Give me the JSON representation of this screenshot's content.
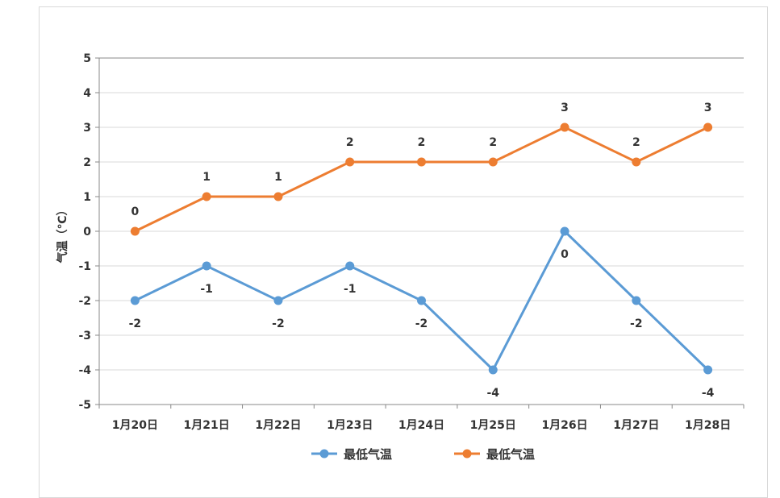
{
  "chart_data": {
    "type": "line",
    "title": "",
    "xlabel": "",
    "ylabel": "气温（℃）",
    "ylim": [
      -5,
      5
    ],
    "yticks": [
      "-5",
      "-4",
      "-3",
      "-2",
      "-1",
      "0",
      "1",
      "2",
      "3",
      "4",
      "5"
    ],
    "grid": true,
    "legend_position": "bottom",
    "categories": [
      "1月20日",
      "1月21日",
      "1月22日",
      "1月23日",
      "1月24日",
      "1月25日",
      "1月26日",
      "1月27日",
      "1月28日"
    ],
    "series": [
      {
        "name": "最低气温",
        "color": "#5b9bd5",
        "values": [
          -2,
          -1,
          -2,
          -1,
          -2,
          -4,
          0,
          -2,
          -4
        ],
        "label_pos": "below"
      },
      {
        "name": "最低气温",
        "color": "#ed7d31",
        "values": [
          0,
          1,
          1,
          2,
          2,
          2,
          3,
          2,
          3
        ],
        "label_pos": "above"
      }
    ]
  }
}
